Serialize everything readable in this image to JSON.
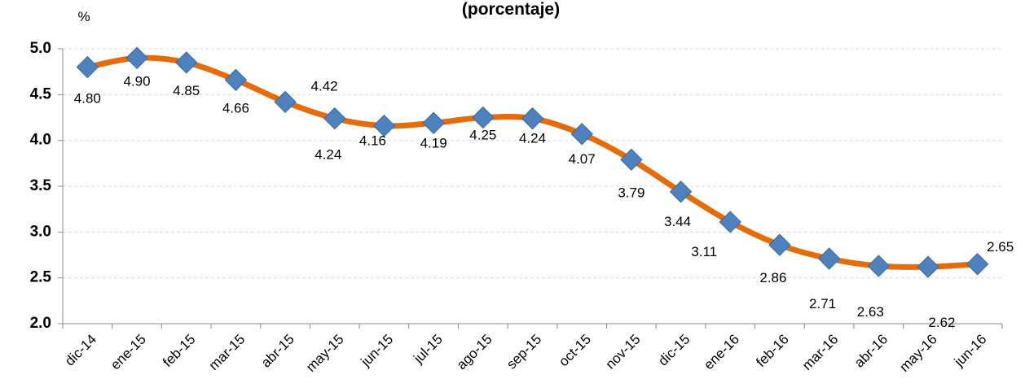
{
  "chart_data": {
    "type": "line",
    "title": "(porcentaje)",
    "y_label": "%",
    "categories": [
      "dic-14",
      "ene-15",
      "feb-15",
      "mar-15",
      "abr-15",
      "may-15",
      "jun-15",
      "jul-15",
      "ago-15",
      "sep-15",
      "oct-15",
      "nov-15",
      "dic-15",
      "ene-16",
      "feb-16",
      "mar-16",
      "abr-16",
      "may-16",
      "jun-16"
    ],
    "series": [
      {
        "name": "%",
        "color": "#e46c0a",
        "marker_color": "#4f81bd",
        "values": [
          4.8,
          4.9,
          4.85,
          4.66,
          4.42,
          4.24,
          4.16,
          4.19,
          4.25,
          4.24,
          4.07,
          3.79,
          3.44,
          3.11,
          2.86,
          2.71,
          2.63,
          2.62,
          2.65
        ],
        "value_labels": [
          "4.80",
          "4.90",
          "4.85",
          "4.66",
          "4.42",
          "4.24",
          "4.16",
          "4.19",
          "4.25",
          "4.24",
          "4.07",
          "3.79",
          "3.44",
          "3.11",
          "2.86",
          "2.71",
          "2.63",
          "2.62",
          "2.65"
        ]
      }
    ],
    "ylim": [
      2,
      5
    ],
    "yticks": [
      {
        "value": 2,
        "label": "2.0"
      },
      {
        "value": 2.5,
        "label": "2.5"
      },
      {
        "value": 3,
        "label": "3.0"
      },
      {
        "value": 3.5,
        "label": "3.5"
      },
      {
        "value": 4,
        "label": "4.0"
      },
      {
        "value": 4.5,
        "label": "4.5"
      },
      {
        "value": 5,
        "label": "5.0"
      }
    ],
    "grid": true
  }
}
